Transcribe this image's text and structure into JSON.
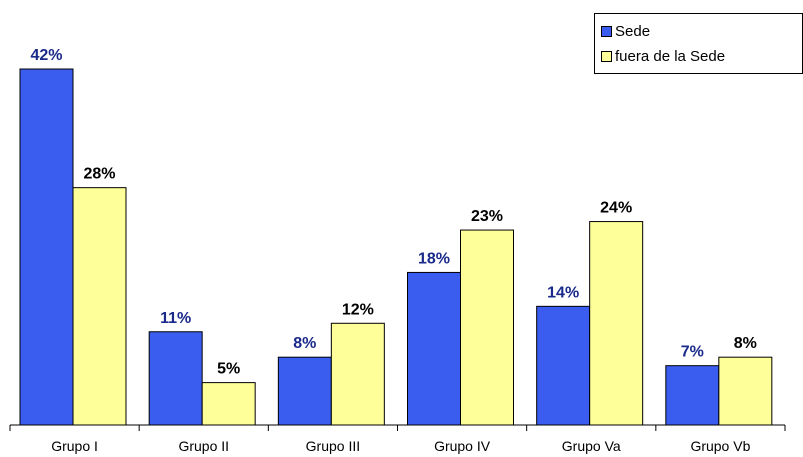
{
  "chart_data": {
    "type": "bar",
    "categories": [
      "Grupo I",
      "Grupo II",
      "Grupo III",
      "Grupo IV",
      "Grupo Va",
      "Grupo Vb"
    ],
    "series": [
      {
        "name": "Sede",
        "values": [
          42,
          11,
          8,
          18,
          14,
          7
        ],
        "labels": [
          "42%",
          "11%",
          "8%",
          "18%",
          "14%",
          "7%"
        ],
        "color": "#3a5df0",
        "label_color": "#1a2a8a"
      },
      {
        "name": "fuera de la Sede",
        "values": [
          28,
          5,
          12,
          23,
          24,
          8
        ],
        "labels": [
          "28%",
          "5%",
          "12%",
          "23%",
          "24%",
          "8%"
        ],
        "color": "#ffff99",
        "label_color": "#000000"
      }
    ],
    "ylim": [
      0,
      42
    ],
    "legend_position": "top-right",
    "grid": false
  }
}
